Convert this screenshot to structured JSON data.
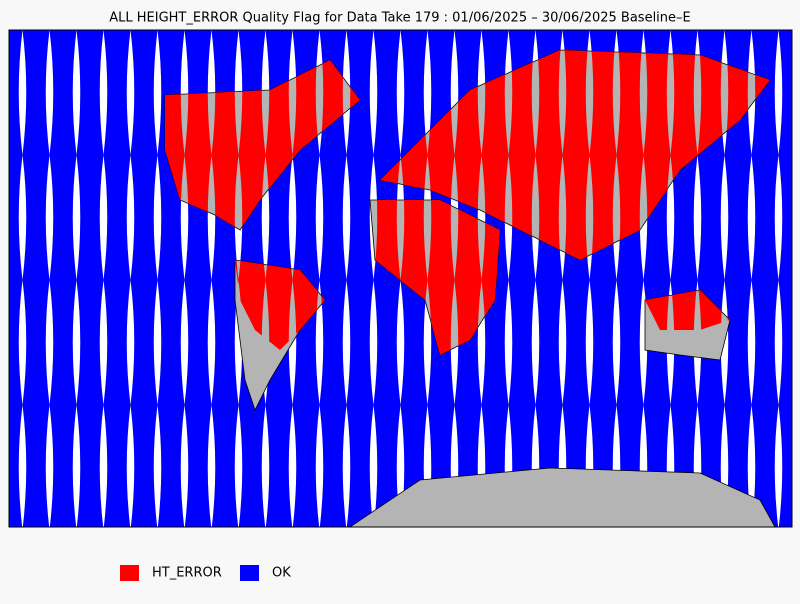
{
  "title": "ALL HEIGHT_ERROR Quality Flag for Data Take 179 : 01/06/2025 – 30/06/2025 Baseline–E",
  "legend": [
    {
      "label": "HT_ERROR",
      "color": "#ff0000"
    },
    {
      "label": "OK",
      "color": "#0000ff"
    }
  ]
}
